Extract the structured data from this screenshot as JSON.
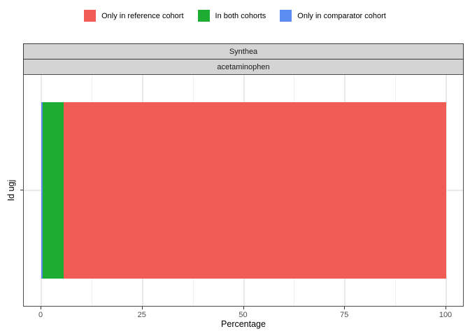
{
  "legend": {
    "items": [
      {
        "label": "Only in reference cohort",
        "color": "#f15c55"
      },
      {
        "label": "In both cohorts",
        "color": "#1cad32"
      },
      {
        "label": "Only in comparator cohort",
        "color": "#5b8df0"
      }
    ]
  },
  "facets": {
    "database": "Synthea",
    "cohort": "acetaminophen"
  },
  "axes": {
    "x_title": "Percentage",
    "y_title": "Id ugj"
  },
  "chart_data": {
    "type": "bar",
    "orientation": "horizontal",
    "stacked": true,
    "title": "",
    "facet_labels": [
      "Synthea",
      "acetaminophen"
    ],
    "categories": [
      "Id ugj"
    ],
    "series": [
      {
        "name": "Only in comparator cohort",
        "values": [
          0.3
        ],
        "color": "#5b8df0"
      },
      {
        "name": "In both cohorts",
        "values": [
          5.3
        ],
        "color": "#1cad32"
      },
      {
        "name": "Only in reference cohort",
        "values": [
          94.4
        ],
        "color": "#f15c55"
      }
    ],
    "xlim": [
      0,
      100
    ],
    "x_ticks": [
      0,
      25,
      50,
      75,
      100
    ],
    "x_minor_ticks": [
      12.5,
      37.5,
      62.5,
      87.5
    ],
    "xlabel": "Percentage",
    "ylabel": "Id ugj",
    "grid": true,
    "legend_position": "top"
  },
  "colors": {
    "strip_bg": "#d4d4d4",
    "strip_border": "#3c3c3c",
    "panel_border": "#4d4d4d",
    "grid_major": "#eaeaea",
    "grid_minor": "#f1f1f1",
    "tick": "#333333"
  }
}
